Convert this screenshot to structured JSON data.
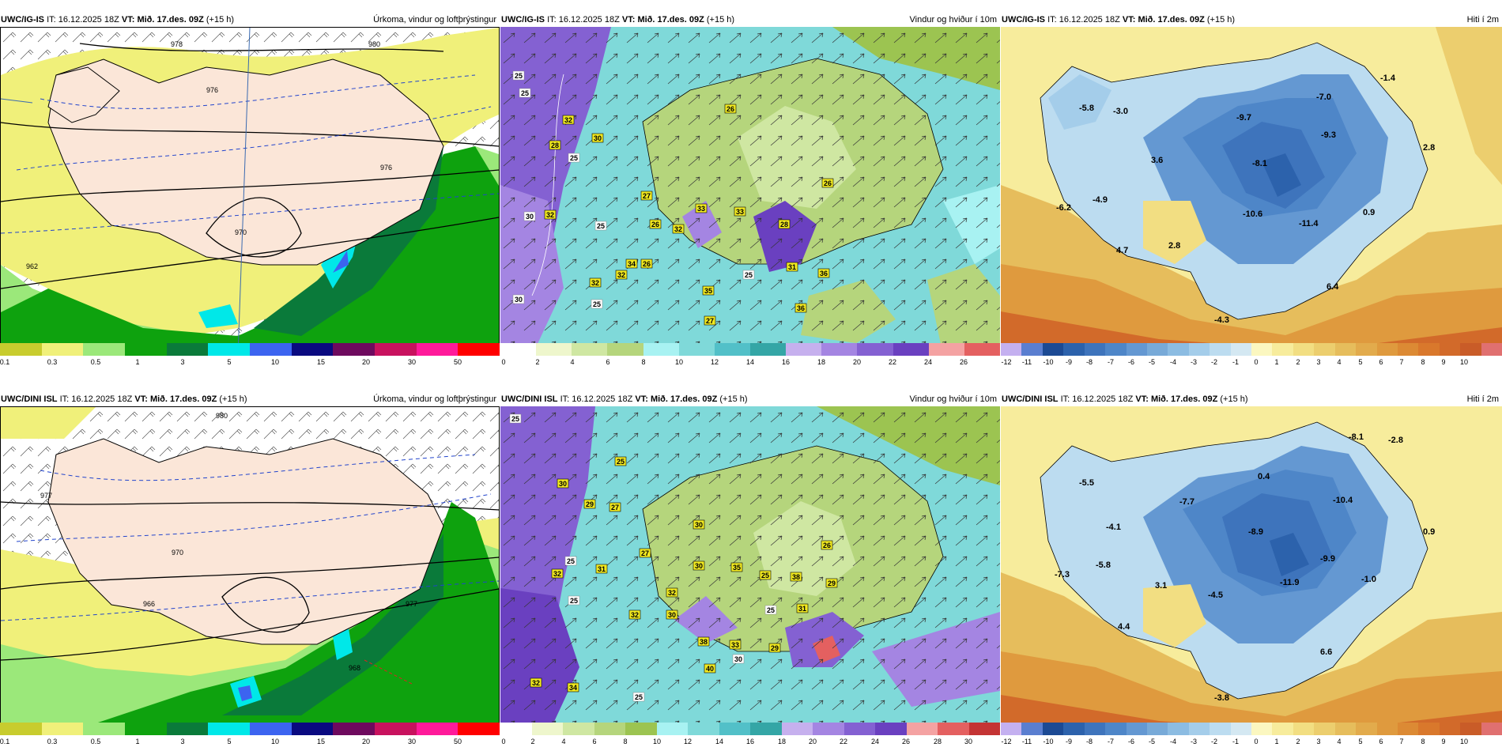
{
  "colors": {
    "precip_scale": [
      "#ffffff",
      "#c8cc2e",
      "#f0f07a",
      "#9be87a",
      "#0ea20e",
      "#0a7a3a",
      "#00e8e8",
      "#3c64f0",
      "#0a0a80",
      "#6e0a5e",
      "#c8125e",
      "#ff1a9a",
      "#ff0000"
    ],
    "wind_scale": [
      "#ffffff",
      "#eef6cc",
      "#cfe7a2",
      "#b5d57c",
      "#9cc451",
      "#a8f2f2",
      "#7fd9d9",
      "#52c0c8",
      "#34a6a6",
      "#c6b0ee",
      "#a485e2",
      "#8461d2",
      "#6a40c0",
      "#f4a2a2",
      "#e46060",
      "#c43434"
    ],
    "temp_scale": [
      "#c4b0f0",
      "#5a7ed0",
      "#1c4a94",
      "#2c62ac",
      "#3e74bc",
      "#4e86c8",
      "#6498d2",
      "#78aad8",
      "#8cbce2",
      "#a4cdea",
      "#bcdcf0",
      "#d4e8f2",
      "#fbf7c0",
      "#f7ec9c",
      "#f2de82",
      "#ecce6e",
      "#e6bd5c",
      "#e2ab4c",
      "#df9a3e",
      "#dc8a34",
      "#d9782c",
      "#d26a2a",
      "#c95c28",
      "#e07070"
    ]
  },
  "panels": [
    {
      "model": "UWC/IG-IS",
      "it_label": "IT:",
      "it_value": "16.12.2025 18Z",
      "vt_label": "VT:",
      "vt_value": "Mið. 17.des. 09Z",
      "lead": "(+15 h)",
      "subtitle": "Úrkoma, vindur og loftþrýstingur",
      "isobar_labels": [
        "978",
        "980",
        "976",
        "976",
        "962",
        "970"
      ],
      "colorbar_ticks": [
        "0.1",
        "0.3",
        "0.5",
        "1",
        "3",
        "5",
        "10",
        "15",
        "20",
        "30",
        "50"
      ]
    },
    {
      "model": "UWC/IG-IS",
      "it_label": "IT:",
      "it_value": "16.12.2025 18Z",
      "vt_label": "VT:",
      "vt_value": "Mið. 17.des. 09Z",
      "lead": "(+15 h)",
      "subtitle": "Vindur og hviður í 10m",
      "gust_labels": [
        "25",
        "25",
        "32",
        "28",
        "30",
        "25",
        "26",
        "27",
        "33",
        "26",
        "32",
        "33",
        "28",
        "32",
        "26",
        "31",
        "36",
        "32",
        "34",
        "26",
        "35",
        "27",
        "36",
        "25",
        "30",
        "25",
        "30",
        "32",
        "25"
      ],
      "colorbar_ticks": [
        "0",
        "2",
        "4",
        "6",
        "8",
        "10",
        "12",
        "14",
        "16",
        "18",
        "20",
        "22",
        "24",
        "26"
      ]
    },
    {
      "model": "UWC/IG-IS",
      "it_label": "IT:",
      "it_value": "16.12.2025 18Z",
      "vt_label": "VT:",
      "vt_value": "Mið. 17.des. 09Z",
      "lead": "(+15 h)",
      "subtitle": "Hiti í 2m",
      "temp_labels": [
        "-5.8",
        "-3.0",
        "-9.7",
        "-7.0",
        "-1.4",
        "-8.1",
        "-9.3",
        "3.6",
        "2.8",
        "-4.9",
        "-6.2",
        "-10.6",
        "-11.4",
        "0.9",
        "4.7",
        "2.8",
        "6.4",
        "-4.3"
      ],
      "colorbar_ticks": [
        "-12",
        "-11",
        "-10",
        "-9",
        "-8",
        "-7",
        "-6",
        "-5",
        "-4",
        "-3",
        "-2",
        "-1",
        "0",
        "1",
        "2",
        "3",
        "4",
        "5",
        "6",
        "7",
        "8",
        "9",
        "10"
      ]
    },
    {
      "model": "UWC/DINI ISL",
      "it_label": "IT:",
      "it_value": "16.12.2025 18Z",
      "vt_label": "VT:",
      "vt_value": "Mið. 17.des. 09Z",
      "lead": "(+15 h)",
      "subtitle": "Úrkoma, vindur og loftþrýstingur",
      "isobar_labels": [
        "980",
        "977",
        "970",
        "966",
        "968",
        "977"
      ],
      "colorbar_ticks": [
        "0.1",
        "0.3",
        "0.5",
        "1",
        "3",
        "5",
        "10",
        "15",
        "20",
        "30",
        "50"
      ]
    },
    {
      "model": "UWC/DINI ISL",
      "it_label": "IT:",
      "it_value": "16.12.2025 18Z",
      "vt_label": "VT:",
      "vt_value": "Mið. 17.des. 09Z",
      "lead": "(+15 h)",
      "subtitle": "Vindur og hviður í 10m",
      "gust_labels": [
        "25",
        "25",
        "30",
        "29",
        "27",
        "30",
        "27",
        "32",
        "31",
        "25",
        "30",
        "26",
        "35",
        "25",
        "38",
        "29",
        "32",
        "30",
        "32",
        "31",
        "29",
        "38",
        "33",
        "40",
        "30",
        "25",
        "25",
        "32",
        "34",
        "25"
      ],
      "colorbar_ticks": [
        "0",
        "2",
        "4",
        "6",
        "8",
        "10",
        "12",
        "14",
        "16",
        "18",
        "20",
        "22",
        "24",
        "26",
        "28",
        "30"
      ]
    },
    {
      "model": "UWC/DINI ISL",
      "it_label": "IT:",
      "it_value": "16.12.2025 18Z",
      "vt_label": "VT:",
      "vt_value": "Mið. 17.des. 09Z",
      "lead": "(+15 h)",
      "subtitle": "Hiti í 2m",
      "temp_labels": [
        "-8.1",
        "-2.8",
        "-5.5",
        "0.4",
        "-7.7",
        "-10.4",
        "-4.1",
        "-8.9",
        "0.9",
        "-5.8",
        "-9.9",
        "-7.3",
        "3.1",
        "-4.5",
        "-11.9",
        "-1.0",
        "4.4",
        "6.6",
        "-3.8"
      ],
      "colorbar_ticks": [
        "-12",
        "-11",
        "-10",
        "-9",
        "-8",
        "-7",
        "-6",
        "-5",
        "-4",
        "-3",
        "-2",
        "-1",
        "0",
        "1",
        "2",
        "3",
        "4",
        "5",
        "6",
        "7",
        "8",
        "9",
        "10"
      ]
    }
  ]
}
